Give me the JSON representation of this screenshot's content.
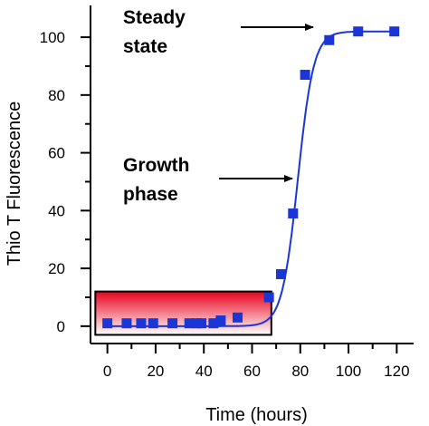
{
  "chart_data": {
    "type": "scatter",
    "xlabel": "Time (hours)",
    "ylabel": "Thio T Fluorescence",
    "xlim": [
      -7,
      127
    ],
    "ylim": [
      -6,
      111
    ],
    "xticks": [
      0,
      20,
      40,
      60,
      80,
      100,
      120
    ],
    "yticks": [
      0,
      20,
      40,
      60,
      80,
      100
    ],
    "grid": false,
    "series": [
      {
        "points": [
          {
            "x": 0,
            "y": 1
          },
          {
            "x": 8,
            "y": 1
          },
          {
            "x": 14,
            "y": 1
          },
          {
            "x": 19,
            "y": 1
          },
          {
            "x": 27,
            "y": 1
          },
          {
            "x": 34,
            "y": 1
          },
          {
            "x": 37,
            "y": 1
          },
          {
            "x": 39,
            "y": 1
          },
          {
            "x": 44,
            "y": 1
          },
          {
            "x": 47,
            "y": 2
          },
          {
            "x": 54,
            "y": 3
          },
          {
            "x": 67,
            "y": 10
          },
          {
            "x": 72,
            "y": 18
          },
          {
            "x": 77,
            "y": 39
          },
          {
            "x": 82,
            "y": 87
          },
          {
            "x": 92,
            "y": 99
          },
          {
            "x": 104,
            "y": 102
          },
          {
            "x": 119,
            "y": 102
          }
        ],
        "fit_curve": {
          "model": "sigmoid",
          "plateau": 102,
          "midpoint": 79,
          "width": 3.3
        }
      }
    ],
    "annotations": [
      {
        "lines": [
          "Steady",
          "state"
        ],
        "arrow_to": {
          "x": 84,
          "y": 102
        }
      },
      {
        "lines": [
          "Growth",
          "phase"
        ],
        "arrow_to": {
          "x": 80,
          "y": 50
        }
      }
    ],
    "highlight": {
      "label": "lag phase box",
      "x_range": [
        -5,
        68
      ],
      "y_range": [
        -3,
        12
      ]
    },
    "colors": {
      "marker": "#1a36d6",
      "curve": "#1a36d6",
      "box_top": "#e8001c",
      "box_bottom": "#ffffff",
      "axis": "#000000"
    }
  }
}
